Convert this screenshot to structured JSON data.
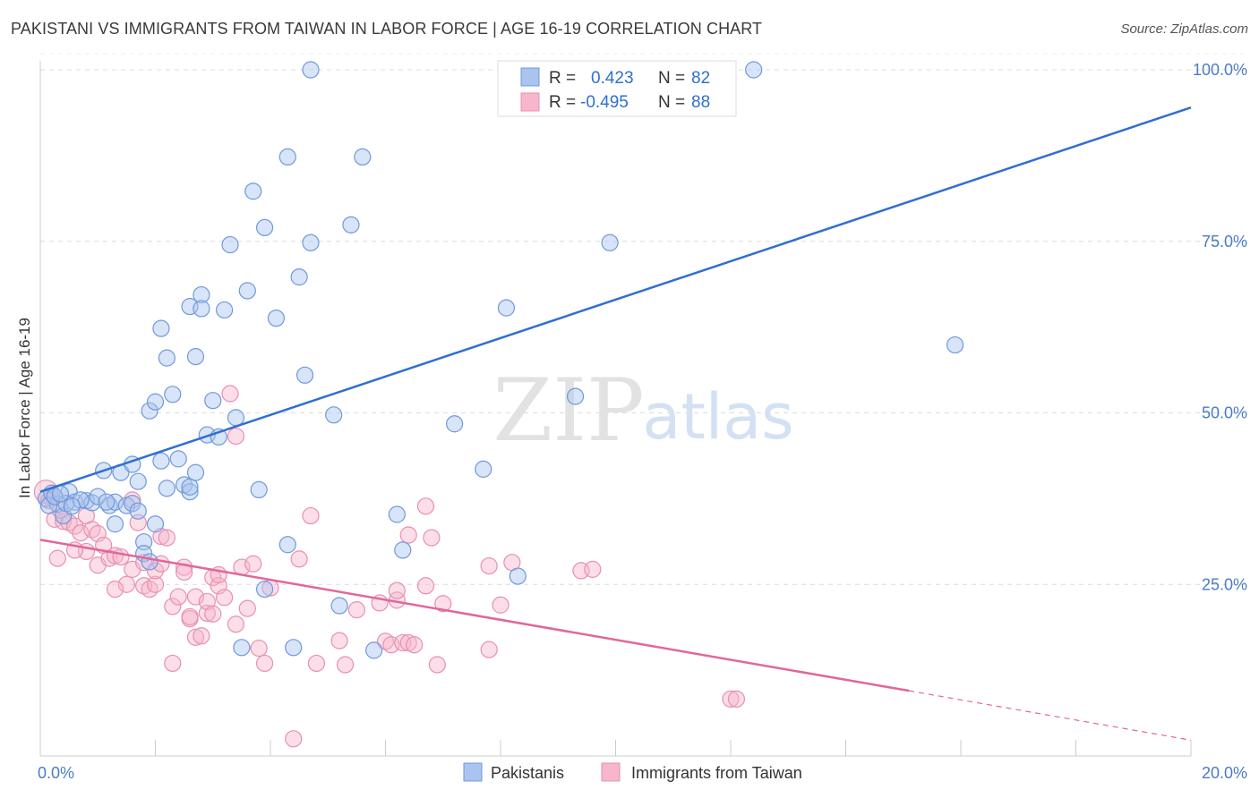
{
  "title": "PAKISTANI VS IMMIGRANTS FROM TAIWAN IN LABOR FORCE | AGE 16-19 CORRELATION CHART",
  "source": "Source: ZipAtlas.com",
  "colors": {
    "blue": "#2f6fd0",
    "blue_fill": "#a9c4ee",
    "pink": "#e0679a",
    "pink_fill": "#f6b6cb",
    "grid": "#dcdcdc"
  },
  "chart_data": {
    "type": "scatter",
    "ylabel": "In Labor Force | Age 16-19",
    "xlim": [
      0,
      20
    ],
    "ylim": [
      0,
      100
    ],
    "x_tick_labels": [
      "0.0%",
      "20.0%"
    ],
    "y_ticks": [
      25,
      50,
      75,
      100
    ],
    "y_tick_labels": [
      "25.0%",
      "50.0%",
      "75.0%",
      "100.0%"
    ],
    "legend": [
      {
        "r_label": "R =",
        "r_value": "0.423",
        "n_label": "N =",
        "n_value": "82"
      },
      {
        "r_label": "R =",
        "r_value": "-0.495",
        "n_label": "N =",
        "n_value": "88"
      }
    ],
    "series": [
      {
        "name": "Pakistanis",
        "color": "blue",
        "trend": {
          "x0": 0,
          "y0": 38.5,
          "x1": 20,
          "y1": 94.5
        },
        "points": [
          [
            0.1,
            37.5
          ],
          [
            0.2,
            38.3
          ],
          [
            0.3,
            36.7
          ],
          [
            0.4,
            35.0
          ],
          [
            0.5,
            38.5
          ],
          [
            0.6,
            37.0
          ],
          [
            0.8,
            37.2
          ],
          [
            0.9,
            36.9
          ],
          [
            1.0,
            37.8
          ],
          [
            1.1,
            41.6
          ],
          [
            1.2,
            36.5
          ],
          [
            1.3,
            37.0
          ],
          [
            1.3,
            33.8
          ],
          [
            1.4,
            41.3
          ],
          [
            1.5,
            36.5
          ],
          [
            1.6,
            42.5
          ],
          [
            1.6,
            36.8
          ],
          [
            1.7,
            35.7
          ],
          [
            1.7,
            40.0
          ],
          [
            1.8,
            31.2
          ],
          [
            1.8,
            29.5
          ],
          [
            1.9,
            28.3
          ],
          [
            2.0,
            33.8
          ],
          [
            1.9,
            50.3
          ],
          [
            2.0,
            51.6
          ],
          [
            2.1,
            62.3
          ],
          [
            2.1,
            43.0
          ],
          [
            2.2,
            58.0
          ],
          [
            2.3,
            52.7
          ],
          [
            2.4,
            43.3
          ],
          [
            2.5,
            39.5
          ],
          [
            2.6,
            38.5
          ],
          [
            2.6,
            39.2
          ],
          [
            2.6,
            65.5
          ],
          [
            2.7,
            41.3
          ],
          [
            2.7,
            58.2
          ],
          [
            2.8,
            67.2
          ],
          [
            2.8,
            65.2
          ],
          [
            2.9,
            46.8
          ],
          [
            3.0,
            51.8
          ],
          [
            3.1,
            46.5
          ],
          [
            3.2,
            65.0
          ],
          [
            3.3,
            74.5
          ],
          [
            3.4,
            49.3
          ],
          [
            3.5,
            15.8
          ],
          [
            3.6,
            67.8
          ],
          [
            3.7,
            82.3
          ],
          [
            3.8,
            38.8
          ],
          [
            3.9,
            77.0
          ],
          [
            3.9,
            24.3
          ],
          [
            4.1,
            63.8
          ],
          [
            4.3,
            30.8
          ],
          [
            4.3,
            87.3
          ],
          [
            4.4,
            15.8
          ],
          [
            4.5,
            69.8
          ],
          [
            4.6,
            55.5
          ],
          [
            4.7,
            74.8
          ],
          [
            4.7,
            100.0
          ],
          [
            5.1,
            49.7
          ],
          [
            5.2,
            21.9
          ],
          [
            5.4,
            77.4
          ],
          [
            5.6,
            87.3
          ],
          [
            5.8,
            15.4
          ],
          [
            6.2,
            35.2
          ],
          [
            6.3,
            30.0
          ],
          [
            7.2,
            48.4
          ],
          [
            7.7,
            41.8
          ],
          [
            8.1,
            65.3
          ],
          [
            8.3,
            26.2
          ],
          [
            9.3,
            52.4
          ],
          [
            9.4,
            100.0
          ],
          [
            9.9,
            74.8
          ],
          [
            12.4,
            100.0
          ],
          [
            15.9,
            59.9
          ],
          [
            0.15,
            36.5
          ],
          [
            0.25,
            37.8
          ],
          [
            0.45,
            36.8
          ],
          [
            0.7,
            37.3
          ],
          [
            1.15,
            37.0
          ],
          [
            2.2,
            39.0
          ],
          [
            0.35,
            38.2
          ],
          [
            0.55,
            36.4
          ]
        ]
      },
      {
        "name": "Immigrants from Taiwan",
        "color": "pink",
        "trend": {
          "x0": 0,
          "y0": 31.5,
          "x1": 15.1,
          "y1": 9.5,
          "x_dash_end": 20,
          "y_dash_end": 2.3
        },
        "points": [
          [
            0.1,
            38.5
          ],
          [
            0.2,
            37.5
          ],
          [
            0.25,
            34.5
          ],
          [
            0.3,
            28.8
          ],
          [
            0.4,
            34.2
          ],
          [
            0.5,
            34.0
          ],
          [
            0.6,
            33.5
          ],
          [
            0.7,
            32.5
          ],
          [
            0.8,
            35.0
          ],
          [
            0.8,
            29.8
          ],
          [
            0.9,
            33.0
          ],
          [
            1.0,
            32.4
          ],
          [
            1.0,
            27.8
          ],
          [
            1.1,
            30.7
          ],
          [
            1.2,
            28.8
          ],
          [
            1.3,
            29.2
          ],
          [
            1.4,
            29.0
          ],
          [
            1.5,
            25.0
          ],
          [
            1.6,
            27.2
          ],
          [
            1.6,
            37.3
          ],
          [
            1.7,
            34.0
          ],
          [
            1.8,
            28.2
          ],
          [
            1.8,
            24.8
          ],
          [
            1.9,
            24.3
          ],
          [
            2.0,
            25.0
          ],
          [
            2.0,
            27.0
          ],
          [
            2.1,
            32.0
          ],
          [
            2.1,
            28.0
          ],
          [
            2.2,
            31.8
          ],
          [
            2.3,
            21.8
          ],
          [
            2.3,
            13.5
          ],
          [
            2.4,
            23.2
          ],
          [
            2.5,
            27.5
          ],
          [
            2.6,
            20.0
          ],
          [
            2.6,
            20.3
          ],
          [
            2.7,
            23.2
          ],
          [
            2.7,
            17.3
          ],
          [
            2.8,
            17.5
          ],
          [
            2.9,
            20.8
          ],
          [
            2.9,
            22.5
          ],
          [
            3.0,
            26.0
          ],
          [
            3.0,
            20.7
          ],
          [
            3.1,
            24.8
          ],
          [
            3.1,
            26.4
          ],
          [
            3.2,
            23.1
          ],
          [
            3.3,
            52.8
          ],
          [
            3.4,
            19.2
          ],
          [
            3.4,
            46.6
          ],
          [
            3.5,
            27.5
          ],
          [
            3.6,
            21.5
          ],
          [
            3.7,
            28.0
          ],
          [
            3.8,
            15.7
          ],
          [
            3.9,
            13.5
          ],
          [
            4.4,
            2.5
          ],
          [
            4.5,
            28.7
          ],
          [
            4.7,
            35.0
          ],
          [
            4.8,
            13.5
          ],
          [
            5.2,
            16.8
          ],
          [
            5.3,
            13.3
          ],
          [
            5.5,
            21.3
          ],
          [
            5.9,
            22.3
          ],
          [
            6.0,
            16.7
          ],
          [
            6.1,
            16.2
          ],
          [
            6.2,
            22.7
          ],
          [
            6.2,
            24.1
          ],
          [
            6.3,
            16.5
          ],
          [
            6.4,
            32.2
          ],
          [
            6.4,
            16.5
          ],
          [
            6.5,
            16.2
          ],
          [
            6.7,
            24.8
          ],
          [
            6.7,
            36.4
          ],
          [
            6.8,
            31.8
          ],
          [
            6.9,
            13.3
          ],
          [
            7.0,
            22.2
          ],
          [
            7.8,
            15.5
          ],
          [
            7.8,
            27.7
          ],
          [
            8.0,
            22.0
          ],
          [
            8.2,
            28.2
          ],
          [
            9.4,
            27.0
          ],
          [
            9.6,
            27.2
          ],
          [
            12.0,
            8.3
          ],
          [
            12.1,
            8.3
          ],
          [
            0.15,
            37.2
          ],
          [
            0.35,
            35.8
          ],
          [
            0.6,
            30.0
          ],
          [
            1.3,
            24.3
          ],
          [
            2.5,
            26.8
          ],
          [
            4.0,
            24.5
          ]
        ]
      }
    ]
  },
  "bottom_legend": [
    "Pakistanis",
    "Immigrants from Taiwan"
  ],
  "watermark": {
    "zip": "ZIP",
    "atlas": "atlas"
  }
}
